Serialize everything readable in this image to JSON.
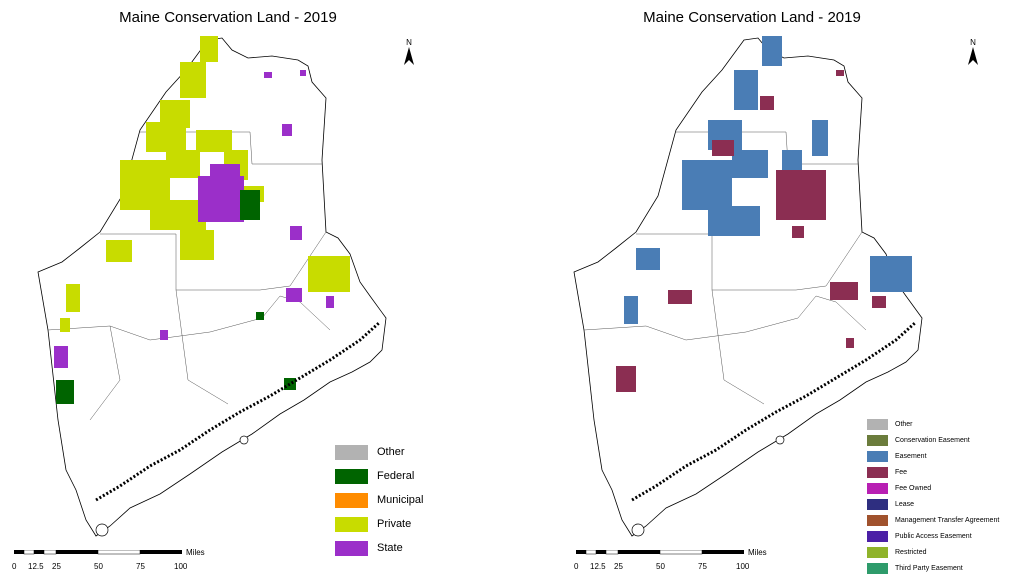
{
  "title": "Maine Conservation Land - 2019",
  "north_label": "N",
  "scale": {
    "units": "Miles",
    "ticks": [
      "0",
      "12.5",
      "25",
      "50",
      "75",
      "100"
    ]
  },
  "left_map": {
    "legend_title": "",
    "legend": [
      {
        "label": "Other",
        "color": "#b2b2b2"
      },
      {
        "label": "Federal",
        "color": "#006400"
      },
      {
        "label": "Municipal",
        "color": "#ff8c00"
      },
      {
        "label": "Private",
        "color": "#c8dc00"
      },
      {
        "label": "State",
        "color": "#9b2fc9"
      }
    ]
  },
  "right_map": {
    "legend": [
      {
        "label": "Other",
        "color": "#b2b2b2"
      },
      {
        "label": "Conservation Easement",
        "color": "#6b7c3c"
      },
      {
        "label": "Easement",
        "color": "#4a7db5"
      },
      {
        "label": "Fee",
        "color": "#8b2e52"
      },
      {
        "label": "Fee Owned",
        "color": "#b81fb3"
      },
      {
        "label": "Lease",
        "color": "#2e2e80"
      },
      {
        "label": "Management Transfer Agreement",
        "color": "#a0522d"
      },
      {
        "label": "Public Access Easement",
        "color": "#4b1fa6"
      },
      {
        "label": "Restricted",
        "color": "#8fb32a"
      },
      {
        "label": "Third Party Easement",
        "color": "#2e9b6b"
      }
    ]
  }
}
